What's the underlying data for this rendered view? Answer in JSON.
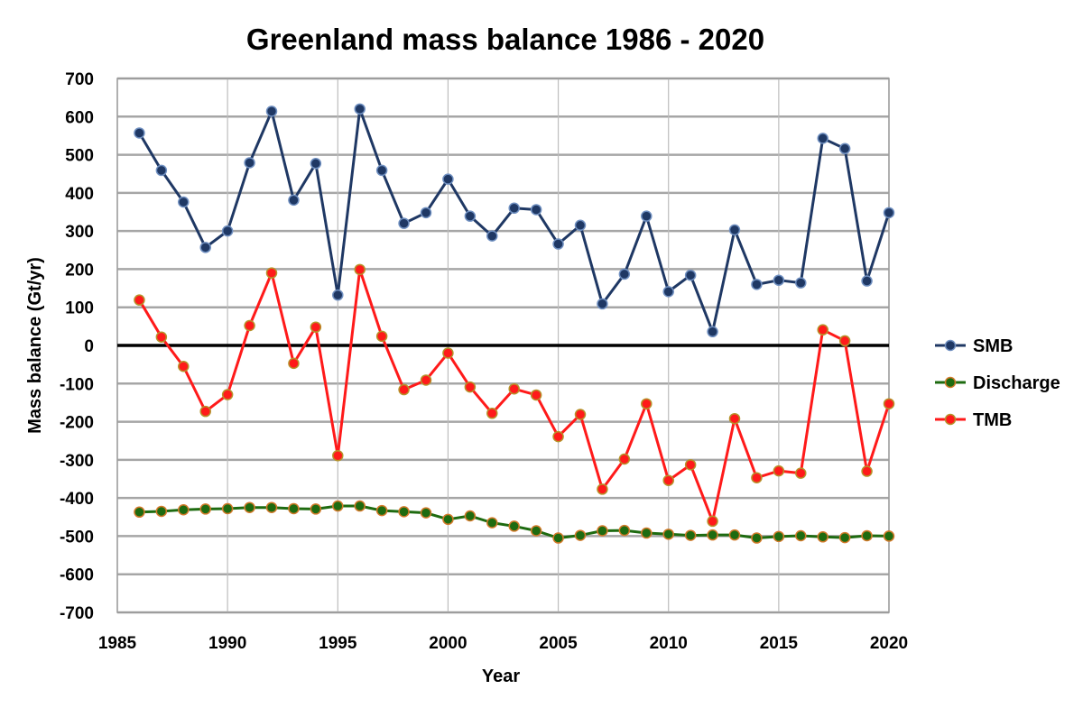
{
  "chart_data": {
    "type": "line",
    "title": "Greenland mass balance 1986 - 2020",
    "xlabel": "Year",
    "ylabel": "Mass balance (Gt/yr)",
    "xlim": [
      1985,
      2020
    ],
    "ylim": [
      -700,
      700
    ],
    "x_ticks": [
      1985,
      1990,
      1995,
      2000,
      2005,
      2010,
      2015,
      2020
    ],
    "y_ticks": [
      700,
      600,
      500,
      400,
      300,
      200,
      100,
      0,
      -100,
      -200,
      -300,
      -400,
      -500,
      -600,
      -700
    ],
    "zero_line": 0,
    "grid": true,
    "legend_position": "right",
    "x": [
      1986,
      1987,
      1988,
      1989,
      1990,
      1991,
      1992,
      1993,
      1994,
      1995,
      1996,
      1997,
      1998,
      1999,
      2000,
      2001,
      2002,
      2003,
      2004,
      2005,
      2006,
      2007,
      2008,
      2009,
      2010,
      2011,
      2012,
      2013,
      2014,
      2015,
      2016,
      2017,
      2018,
      2019,
      2020
    ],
    "series": [
      {
        "name": "SMB",
        "color": "#1f3864",
        "marker_fill": "#1f3864",
        "marker_edge": "#6f8fc0",
        "values": [
          557,
          459,
          376,
          257,
          300,
          479,
          614,
          381,
          477,
          132,
          620,
          459,
          320,
          348,
          436,
          339,
          287,
          360,
          356,
          266,
          315,
          109,
          187,
          339,
          141,
          184,
          36,
          303,
          160,
          171,
          164,
          543,
          516,
          169,
          348
        ]
      },
      {
        "name": "Discharge",
        "color": "#1e6b10",
        "marker_fill": "#1e6b10",
        "marker_edge": "#d27a2a",
        "values": [
          -437,
          -435,
          -431,
          -429,
          -428,
          -425,
          -425,
          -428,
          -429,
          -421,
          -421,
          -433,
          -436,
          -439,
          -456,
          -447,
          -465,
          -474,
          -486,
          -505,
          -498,
          -486,
          -485,
          -492,
          -495,
          -498,
          -497,
          -497,
          -505,
          -501,
          -499,
          -502,
          -504,
          -499,
          -500
        ]
      },
      {
        "name": "TMB",
        "color": "#ff1a1a",
        "marker_fill": "#ff1a1a",
        "marker_edge": "#b6922a",
        "values": [
          119,
          22,
          -55,
          -173,
          -129,
          52,
          190,
          -47,
          48,
          -289,
          199,
          24,
          -116,
          -91,
          -20,
          -109,
          -178,
          -114,
          -130,
          -239,
          -181,
          -377,
          -298,
          -153,
          -354,
          -313,
          -461,
          -192,
          -347,
          -329,
          -335,
          41,
          12,
          -330,
          -153
        ]
      }
    ]
  }
}
